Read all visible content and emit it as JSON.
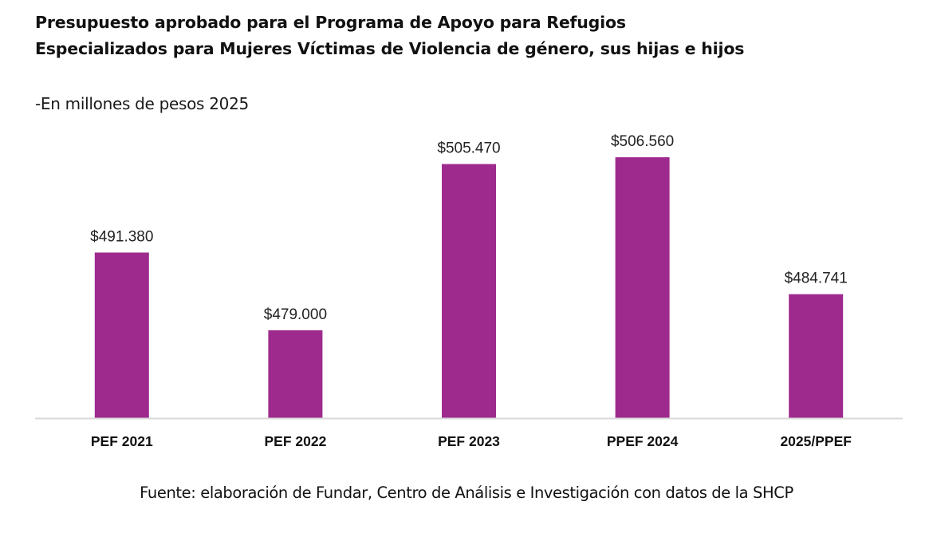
{
  "chart_data": {
    "type": "bar",
    "title": "Presupuesto aprobado para el Programa de Apoyo para Refugios Especializados para Mujeres Víctimas de Violencia de género, sus hijas e hijos",
    "subtitle": "-En millones de pesos 2025",
    "categories": [
      "PEF 2021",
      "PEF 2022",
      "PEF 2023",
      "PPEF 2024",
      "2025/PPEF"
    ],
    "values": [
      491.38,
      479.0,
      505.47,
      506.56,
      484.741
    ],
    "data_labels": [
      "$491.380",
      "$479.000",
      "$505.470",
      "$506.560",
      "$484.741"
    ],
    "xlabel": "",
    "ylabel": "",
    "ylim": [
      465,
      510
    ],
    "y_axis_visible": false,
    "grid": false,
    "legend": "none",
    "bar_color": "#9E2A8E",
    "source": "Fuente: elaboración de Fundar, Centro de Análisis e Investigación con datos de la SHCP"
  }
}
